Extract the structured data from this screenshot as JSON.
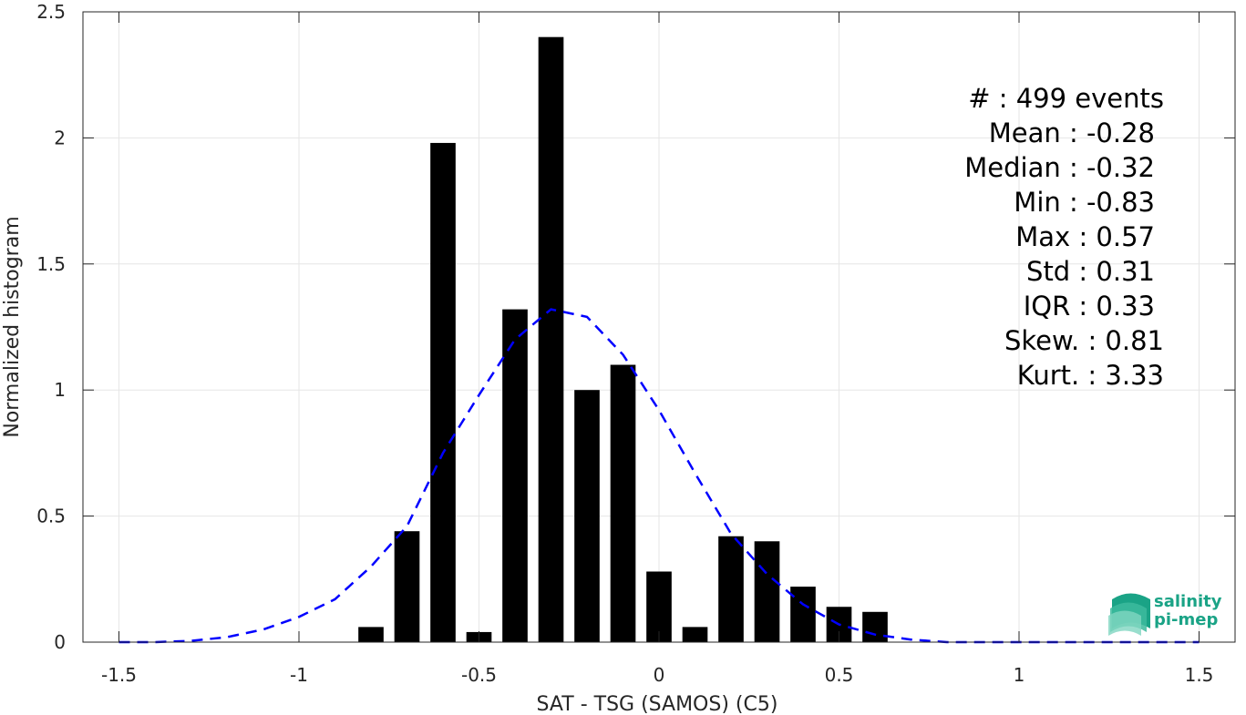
{
  "chart_data": {
    "type": "bar",
    "xlabel": "SAT - TSG (SAMOS) (C5)",
    "ylabel": "Normalized histogram",
    "xlim": [
      -1.6,
      1.6
    ],
    "ylim": [
      0,
      2.5
    ],
    "xticks": [
      -1.5,
      -1,
      -0.5,
      0,
      0.5,
      1,
      1.5
    ],
    "xtick_labels": [
      "-1.5",
      "-1",
      "-0.5",
      "0",
      "0.5",
      "1",
      "1.5"
    ],
    "yticks": [
      0,
      0.5,
      1,
      1.5,
      2,
      2.5
    ],
    "ytick_labels": [
      "0",
      "0.5",
      "1",
      "1.5",
      "2",
      "2.5"
    ],
    "grid": true,
    "bar_width": 0.07,
    "bars": [
      {
        "x": -0.8,
        "y": 0.06
      },
      {
        "x": -0.7,
        "y": 0.44
      },
      {
        "x": -0.6,
        "y": 1.98
      },
      {
        "x": -0.5,
        "y": 0.04
      },
      {
        "x": -0.4,
        "y": 1.32
      },
      {
        "x": -0.3,
        "y": 2.4
      },
      {
        "x": -0.2,
        "y": 1.0
      },
      {
        "x": -0.1,
        "y": 1.1
      },
      {
        "x": 0.0,
        "y": 0.28
      },
      {
        "x": 0.1,
        "y": 0.06
      },
      {
        "x": 0.2,
        "y": 0.42
      },
      {
        "x": 0.3,
        "y": 0.4
      },
      {
        "x": 0.4,
        "y": 0.22
      },
      {
        "x": 0.5,
        "y": 0.14
      },
      {
        "x": 0.6,
        "y": 0.12
      }
    ],
    "bar_color": "#000000",
    "fit_curve": {
      "style": "dashed",
      "color": "#0000ff",
      "x": [
        -1.5,
        -1.4,
        -1.3,
        -1.2,
        -1.1,
        -1.0,
        -0.9,
        -0.8,
        -0.7,
        -0.6,
        -0.5,
        -0.4,
        -0.3,
        -0.2,
        -0.1,
        0.0,
        0.1,
        0.2,
        0.3,
        0.4,
        0.5,
        0.6,
        0.7,
        0.8,
        0.9,
        1.0,
        1.1,
        1.2,
        1.3,
        1.4,
        1.5
      ],
      "y": [
        0.0,
        0.0,
        0.005,
        0.02,
        0.05,
        0.1,
        0.17,
        0.3,
        0.46,
        0.75,
        0.98,
        1.2,
        1.32,
        1.29,
        1.14,
        0.92,
        0.67,
        0.43,
        0.27,
        0.15,
        0.07,
        0.03,
        0.01,
        0.0,
        0.0,
        0.0,
        0.0,
        0.0,
        0.0,
        0.0,
        0.0
      ]
    }
  },
  "stats": [
    "#  : 499 events",
    "Mean : -0.28",
    "Median : -0.32",
    "Min : -0.83",
    "Max : 0.57",
    "Std : 0.31",
    "IQR : 0.33",
    "Skew. : 0.81",
    "Kurt. : 3.33"
  ],
  "logo": {
    "line1": "salinity",
    "line2": "pi-mep",
    "color": "#1aa386"
  }
}
